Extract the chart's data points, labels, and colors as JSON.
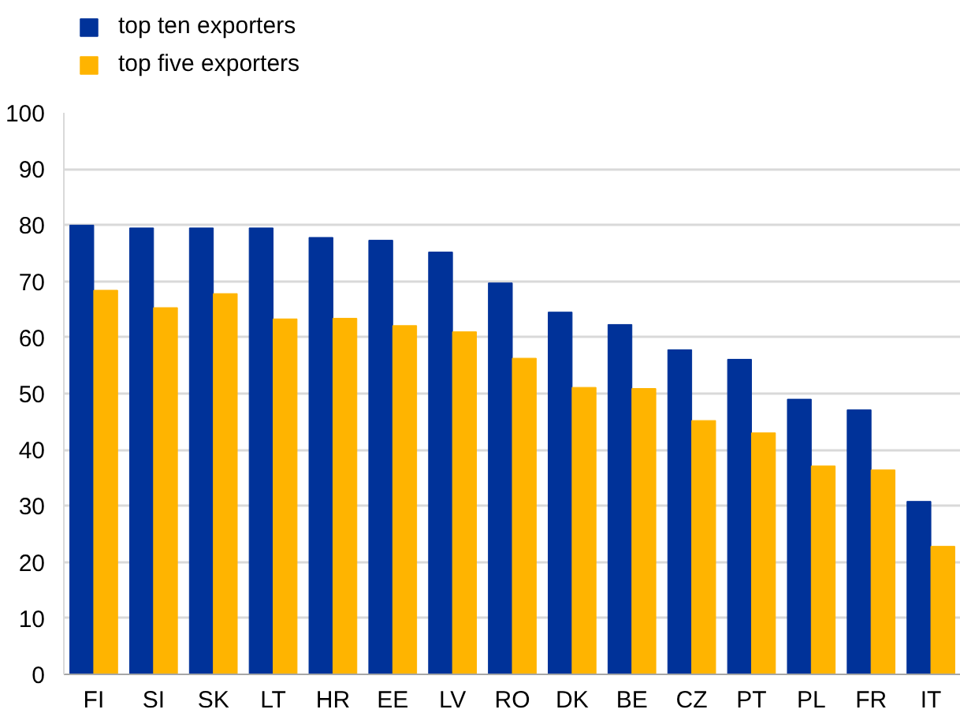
{
  "chart_data": {
    "type": "bar",
    "categories": [
      "FI",
      "SI",
      "SK",
      "LT",
      "HR",
      "EE",
      "LV",
      "RO",
      "DK",
      "BE",
      "CZ",
      "PT",
      "PL",
      "FR",
      "IT"
    ],
    "series": [
      {
        "name": "top ten exporters",
        "color": "#003299",
        "values": [
          80.0,
          79.5,
          79.5,
          79.5,
          77.8,
          77.3,
          75.2,
          69.7,
          64.5,
          62.3,
          57.8,
          56.1,
          49.0,
          47.1,
          30.8
        ]
      },
      {
        "name": "top five exporters",
        "color": "#ffb400",
        "values": [
          68.4,
          65.3,
          67.8,
          63.3,
          63.4,
          62.1,
          61.0,
          56.3,
          51.1,
          50.9,
          45.2,
          43.0,
          37.1,
          36.4,
          22.8
        ]
      }
    ],
    "ylim": [
      0,
      100
    ],
    "yticks": [
      0,
      10,
      20,
      30,
      40,
      50,
      60,
      70,
      80,
      90,
      100
    ],
    "grid": "y",
    "legend": "top left"
  }
}
